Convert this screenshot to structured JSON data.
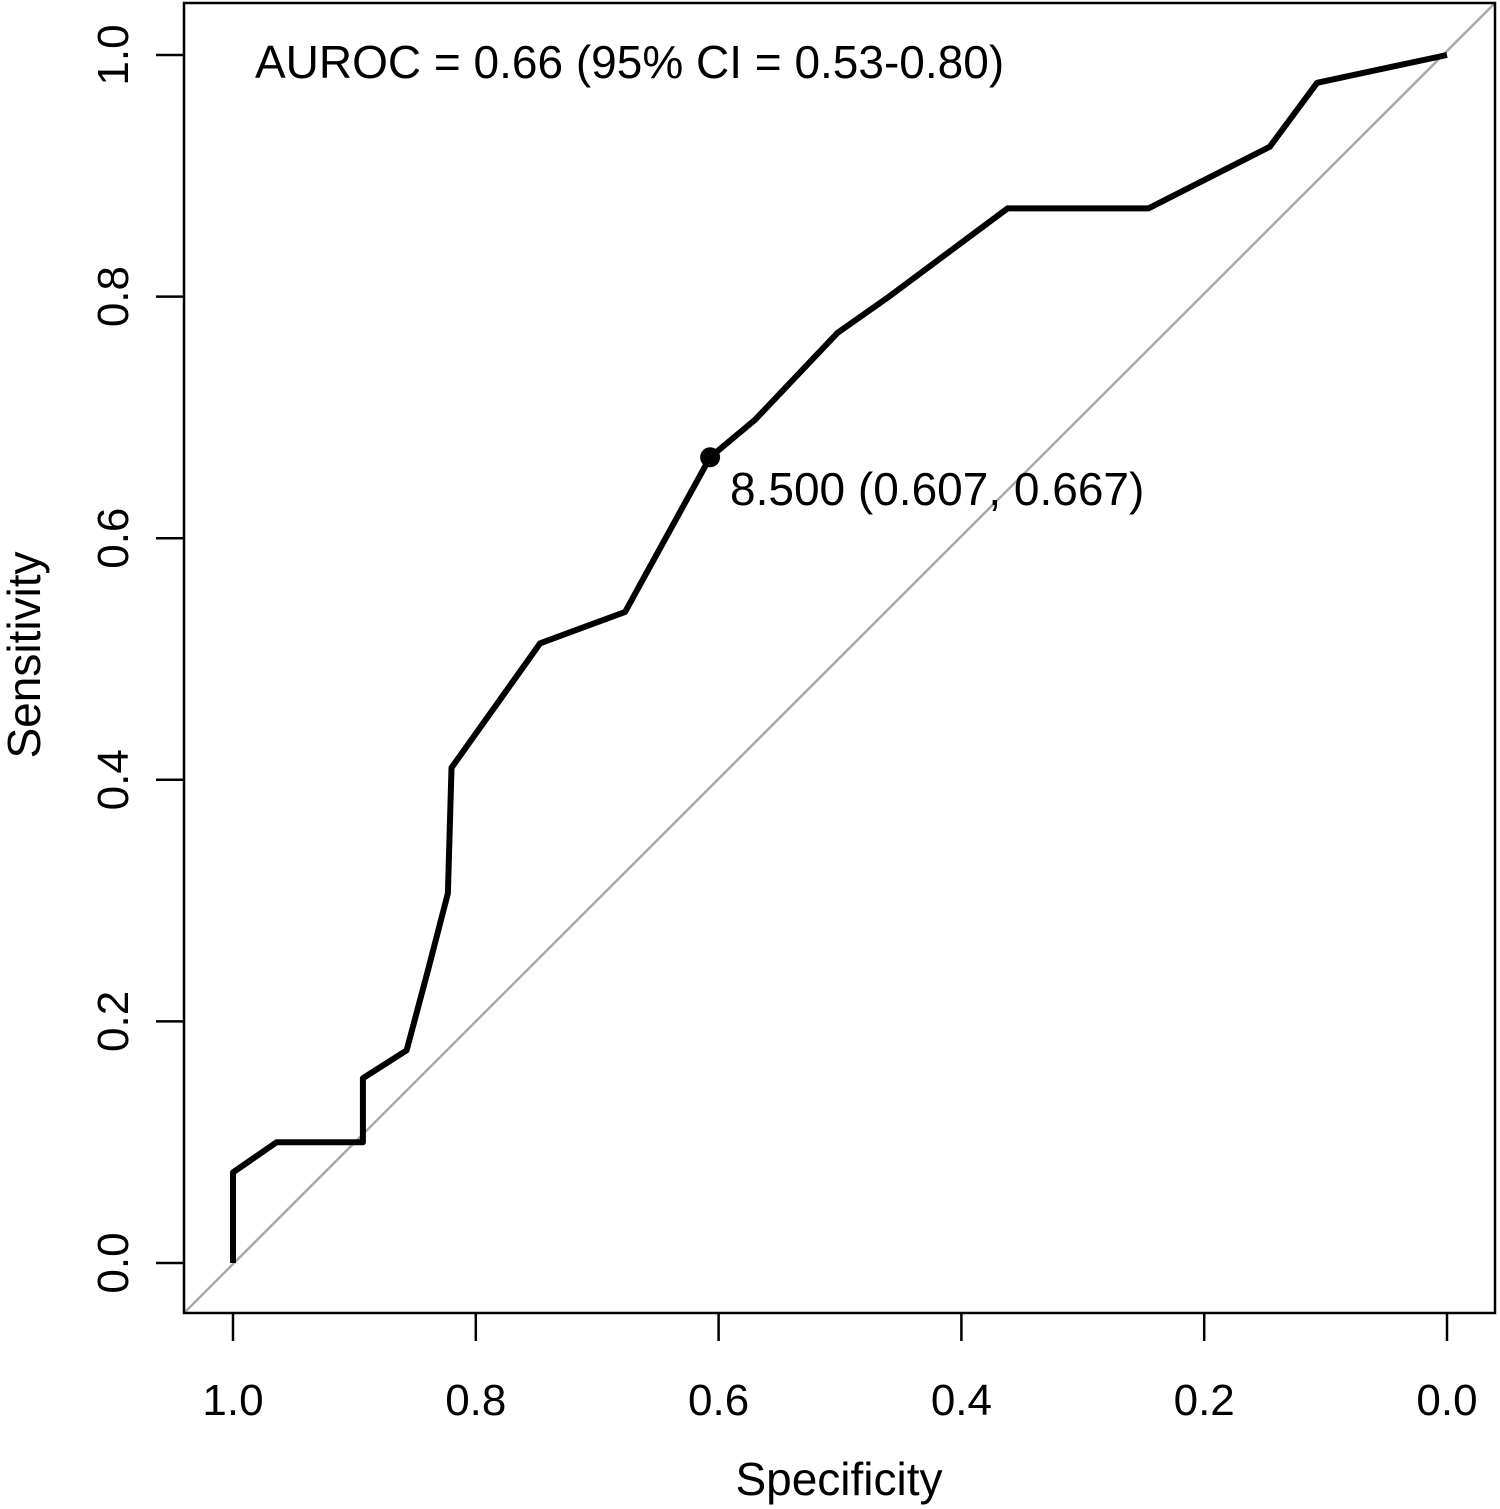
{
  "figure": {
    "background_color": "#ffffff",
    "auroc_annotation": "AUROC = 0.66 (95% CI = 0.53-0.80)",
    "threshold_annotation": "8.500 (0.607, 0.667)"
  },
  "chart_data": {
    "type": "line",
    "title": "AUROC = 0.66 (95% CI = 0.53-0.80)",
    "xlabel": "Specificity",
    "ylabel": "Sensitivity",
    "auroc": 0.66,
    "ci_95_low": 0.53,
    "ci_95_high": 0.8,
    "grid": false,
    "legend": false,
    "x_axis": {
      "label": "Specificity",
      "tick_labels": [
        "1.0",
        "0.8",
        "0.6",
        "0.4",
        "0.2",
        "0.0"
      ],
      "range": [
        1.0,
        0.0
      ],
      "reversed": true
    },
    "y_axis": {
      "label": "Sensitivity",
      "tick_labels": [
        "0.0",
        "0.2",
        "0.4",
        "0.6",
        "0.8",
        "1.0"
      ],
      "range": [
        0.0,
        1.0
      ]
    },
    "series": [
      {
        "name": "ROC curve",
        "color": "#000000",
        "line_width": 6,
        "points_specificity_sensitivity": [
          [
            1.0,
            0.0
          ],
          [
            1.0,
            0.075
          ],
          [
            0.964,
            0.1
          ],
          [
            0.893,
            0.1
          ],
          [
            0.893,
            0.153
          ],
          [
            0.857,
            0.176
          ],
          [
            0.84,
            0.24
          ],
          [
            0.823,
            0.306
          ],
          [
            0.82,
            0.41
          ],
          [
            0.747,
            0.513
          ],
          [
            0.677,
            0.539
          ],
          [
            0.607,
            0.667
          ],
          [
            0.57,
            0.698
          ],
          [
            0.502,
            0.77
          ],
          [
            0.461,
            0.799
          ],
          [
            0.362,
            0.873
          ],
          [
            0.246,
            0.873
          ],
          [
            0.146,
            0.924
          ],
          [
            0.107,
            0.977
          ],
          [
            0.0,
            1.0
          ]
        ]
      },
      {
        "name": "Chance diagonal",
        "color": "#a9a9a9",
        "line_width": 2.5,
        "points_specificity_sensitivity": [
          [
            1.0,
            0.0
          ],
          [
            0.0,
            1.0
          ]
        ]
      }
    ],
    "marked_point": {
      "threshold": "8.500",
      "specificity": 0.607,
      "sensitivity": 0.667,
      "label": "8.500 (0.607, 0.667)",
      "color": "#000000"
    }
  }
}
